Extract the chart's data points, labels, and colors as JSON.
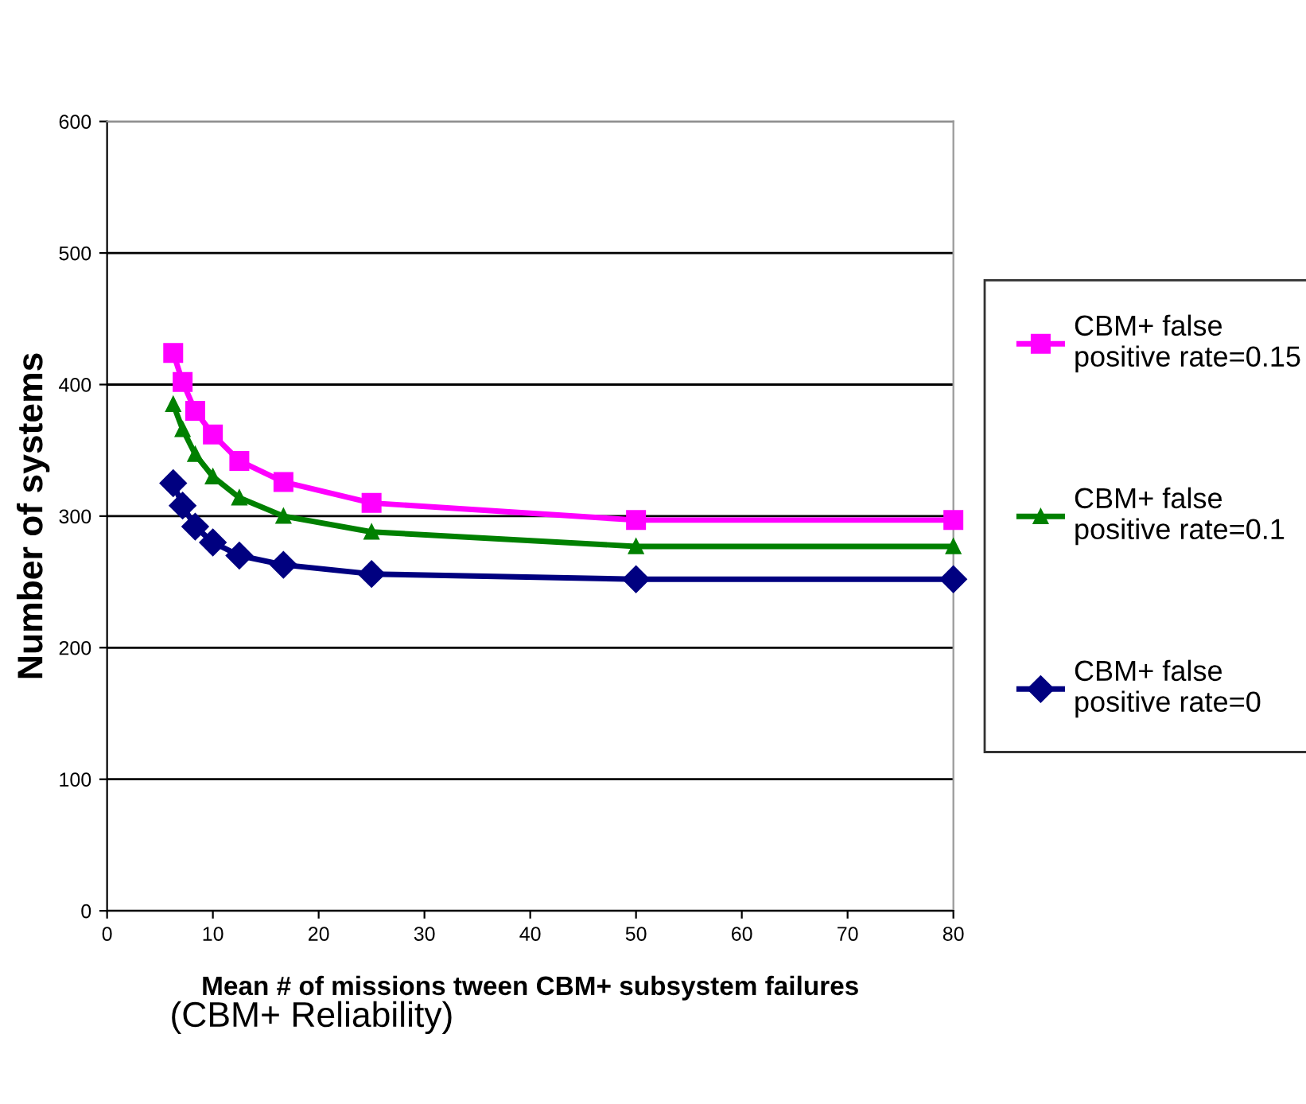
{
  "chart_data": {
    "type": "line",
    "xlabel": "Mean # of missions tween CBM+ subsystem failures",
    "ylabel": "Number of systems",
    "annotations": [
      "(CBM+ Reliability)"
    ],
    "x": [
      6.25,
      7.14,
      8.33,
      10,
      12.5,
      16.67,
      25,
      50,
      80
    ],
    "series": [
      {
        "name": "CBM+ false positive rate=0.15",
        "color": "#ff00ff",
        "marker": "square",
        "values": [
          424,
          402,
          380,
          362,
          342,
          326,
          310,
          297,
          297
        ]
      },
      {
        "name": "CBM+ false positive rate=0.1",
        "color": "#008000",
        "marker": "triangle",
        "values": [
          385,
          366,
          347,
          330,
          314,
          300,
          288,
          277,
          277
        ]
      },
      {
        "name": "CBM+ false positive rate=0",
        "color": "#000080",
        "marker": "diamond",
        "values": [
          325,
          308,
          292,
          280,
          270,
          263,
          256,
          252,
          252
        ]
      }
    ],
    "xlim": [
      0,
      80
    ],
    "xticks": [
      0,
      10,
      20,
      30,
      40,
      50,
      60,
      70,
      80
    ],
    "ylim": [
      0,
      600
    ],
    "yticks": [
      0,
      100,
      200,
      300,
      400,
      500,
      600
    ],
    "grid": "y",
    "legend": "right",
    "line_style": "solid"
  }
}
